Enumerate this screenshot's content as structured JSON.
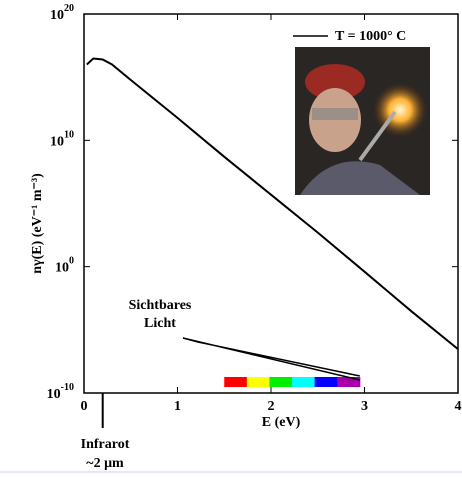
{
  "chart_data": {
    "type": "line",
    "x_label": "E (eV)",
    "y_label": "nγ(E) (eV⁻¹ m⁻³)",
    "log_y": true,
    "xlim": [
      0,
      4
    ],
    "xticks": [
      0,
      1,
      2,
      3,
      4
    ],
    "ylim": [
      1e-10,
      1e+20
    ],
    "yticks": [
      {
        "value": 1e+20,
        "label": "10",
        "exponent": "20"
      },
      {
        "value": 10000000000.0,
        "label": "10",
        "exponent": "10"
      },
      {
        "value": 1,
        "label": "10",
        "exponent": "0"
      },
      {
        "value": 1e-10,
        "label": "10",
        "exponent": "-10"
      }
    ],
    "series": [
      {
        "name": "T = 1000° C",
        "color": "#000000",
        "x": [
          0.03,
          0.1,
          0.2,
          0.3,
          0.5,
          1,
          1.5,
          2,
          2.5,
          3,
          3.5,
          4
        ],
        "values": [
          1e+16,
          3e+16,
          2.5e+16,
          1e+16,
          600000000000000.0,
          600000000000.0,
          500000000.0,
          500000.0,
          500,
          0.4,
          0.0003,
          3e-07
        ]
      }
    ],
    "visible_band": {
      "label_line1": "Sichtbares",
      "label_line2": "Licht",
      "xlim": [
        1.5,
        2.95
      ],
      "colors": [
        "#ff0000",
        "#ffff00",
        "#00ee00",
        "#00ffff",
        "#0000ff",
        "#aa00aa"
      ]
    },
    "infrared_marker": {
      "x": 0.2,
      "label_line1": "Infrarot",
      "label_line2": "~2 μm"
    }
  }
}
